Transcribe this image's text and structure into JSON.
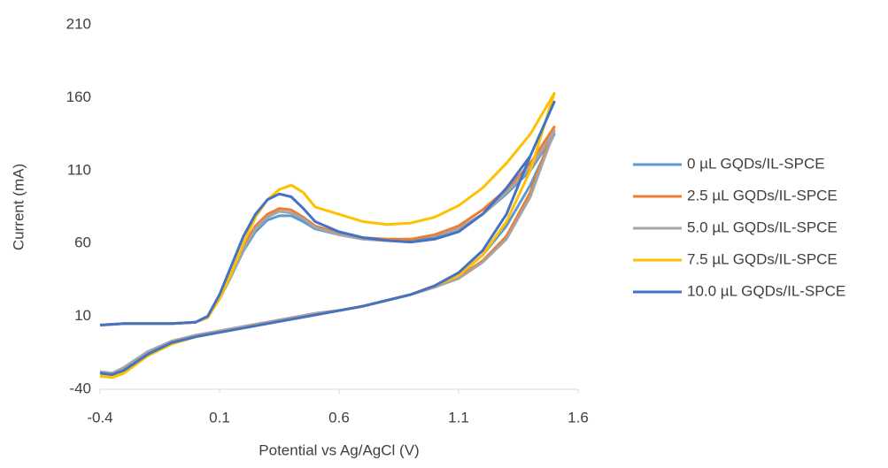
{
  "chart_data": {
    "type": "line",
    "x_label": "Potential vs Ag/AgCl (V)",
    "y_label": "Current (mA)",
    "xlim": [
      -0.4,
      1.6
    ],
    "xticks": [
      -0.4,
      0.1,
      0.6,
      1.1,
      1.6
    ],
    "ylim": [
      -40,
      210
    ],
    "yticks": [
      -40,
      10,
      60,
      110,
      160,
      210
    ],
    "grid": false,
    "legend": "right",
    "x": [
      -0.4,
      -0.3,
      -0.2,
      -0.1,
      0,
      0.05,
      0.1,
      0.15,
      0.2,
      0.25,
      0.3,
      0.35,
      0.4,
      0.45,
      0.5,
      0.6,
      0.7,
      0.8,
      0.9,
      1.0,
      1.1,
      1.2,
      1.3,
      1.4,
      1.5,
      1.4,
      1.3,
      1.2,
      1.1,
      1.0,
      0.9,
      0.8,
      0.7,
      0.6,
      0.5,
      0.4,
      0.3,
      0.2,
      0.1,
      0,
      -0.1,
      -0.2,
      -0.3,
      -0.35,
      -0.4
    ],
    "series": [
      {
        "name": "0 µL GQDs/IL-SPCE",
        "color": "#5b9bd5",
        "values": [
          4,
          5,
          5,
          5,
          6,
          10,
          22,
          38,
          55,
          68,
          76,
          79,
          79,
          75,
          70,
          66,
          63,
          62,
          62,
          64,
          70,
          80,
          94,
          110,
          135,
          100,
          72,
          52,
          38,
          31,
          25,
          21,
          17,
          14,
          12,
          9,
          6,
          3,
          0,
          -3,
          -8,
          -15,
          -26,
          -29,
          -28
        ]
      },
      {
        "name": "2.5 µL GQDs/IL-SPCE",
        "color": "#ed7d31",
        "values": [
          4,
          5,
          5,
          5,
          6,
          10,
          23,
          40,
          58,
          72,
          80,
          84,
          83,
          78,
          72,
          67,
          64,
          63,
          63,
          66,
          72,
          83,
          97,
          115,
          140,
          95,
          65,
          48,
          37,
          30,
          25,
          21,
          17,
          14,
          12,
          9,
          6,
          3,
          0,
          -3,
          -7,
          -15,
          -27,
          -30,
          -29
        ]
      },
      {
        "name": "5.0 µL GQDs/IL-SPCE",
        "color": "#a5a5a5",
        "values": [
          4,
          5,
          5,
          5,
          6,
          10,
          22,
          38,
          56,
          70,
          78,
          82,
          81,
          77,
          71,
          66,
          63,
          62,
          61,
          63,
          70,
          80,
          95,
          112,
          137,
          92,
          63,
          47,
          36,
          30,
          25,
          21,
          17,
          14,
          12,
          9,
          6,
          3,
          0,
          -3,
          -7,
          -14,
          -25,
          -29,
          -28
        ]
      },
      {
        "name": "7.5 µL GQDs/IL-SPCE",
        "color": "#ffc000",
        "values": [
          4,
          5,
          5,
          5,
          6,
          9,
          22,
          40,
          60,
          78,
          90,
          97,
          100,
          95,
          85,
          80,
          75,
          73,
          74,
          78,
          86,
          98,
          115,
          135,
          163,
          110,
          75,
          52,
          38,
          31,
          25,
          21,
          17,
          14,
          11,
          8,
          5,
          2,
          -1,
          -4,
          -9,
          -17,
          -29,
          -32,
          -31
        ]
      },
      {
        "name": "10.0 µL GQDs/IL-SPCE",
        "color": "#4472c4",
        "values": [
          4,
          5,
          5,
          5,
          6,
          10,
          25,
          45,
          65,
          80,
          90,
          94,
          92,
          84,
          75,
          68,
          64,
          62,
          61,
          63,
          68,
          80,
          98,
          120,
          157,
          120,
          80,
          55,
          40,
          31,
          25,
          21,
          17,
          14,
          11,
          8,
          5,
          2,
          -1,
          -4,
          -8,
          -16,
          -27,
          -30,
          -29
        ]
      }
    ]
  }
}
